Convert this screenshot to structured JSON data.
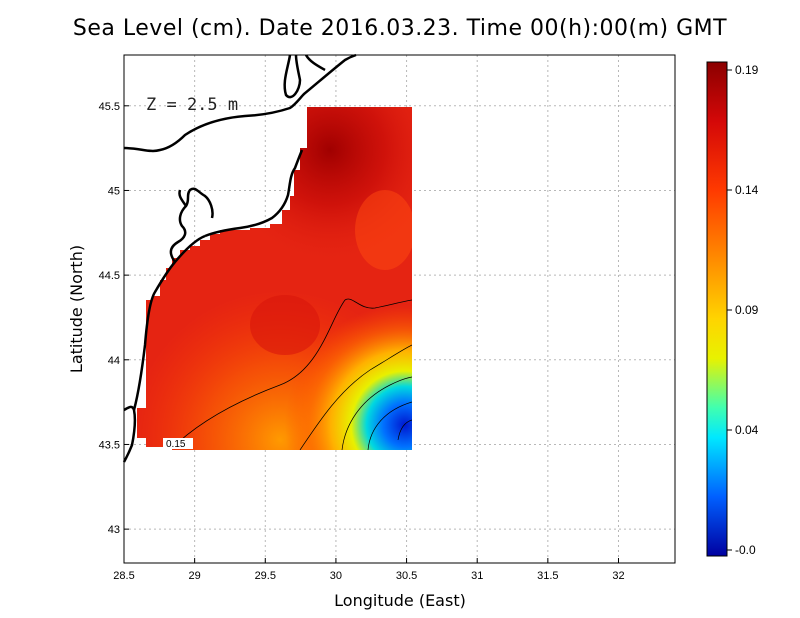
{
  "title": "Sea Level (cm). Date 2016.03.23. Time 00(h):00(m) GMT",
  "annotation": "Z = 2.5 m",
  "contour_label": "0.15",
  "chart_data": {
    "type": "heatmap",
    "xlabel": "Longitude (East)",
    "ylabel": "Latitude (North)",
    "xlim": [
      28.5,
      32.4
    ],
    "ylim": [
      42.8,
      45.8
    ],
    "xticks": [
      "28.5",
      "29",
      "29.5",
      "30",
      "30.5",
      "31",
      "31.5",
      "32"
    ],
    "yticks": [
      "43",
      "43.5",
      "44",
      "44.5",
      "45",
      "45.5"
    ],
    "grid": true,
    "colorbar": {
      "ticks": [
        "0.19",
        "0.14",
        "0.09",
        "0.04",
        "-0.0"
      ],
      "colors": [
        "#8b0000",
        "#e21c10",
        "#ff7a00",
        "#ffd400",
        "#f2f200",
        "#00e8ff",
        "#0060ff",
        "#0000a0"
      ]
    }
  }
}
